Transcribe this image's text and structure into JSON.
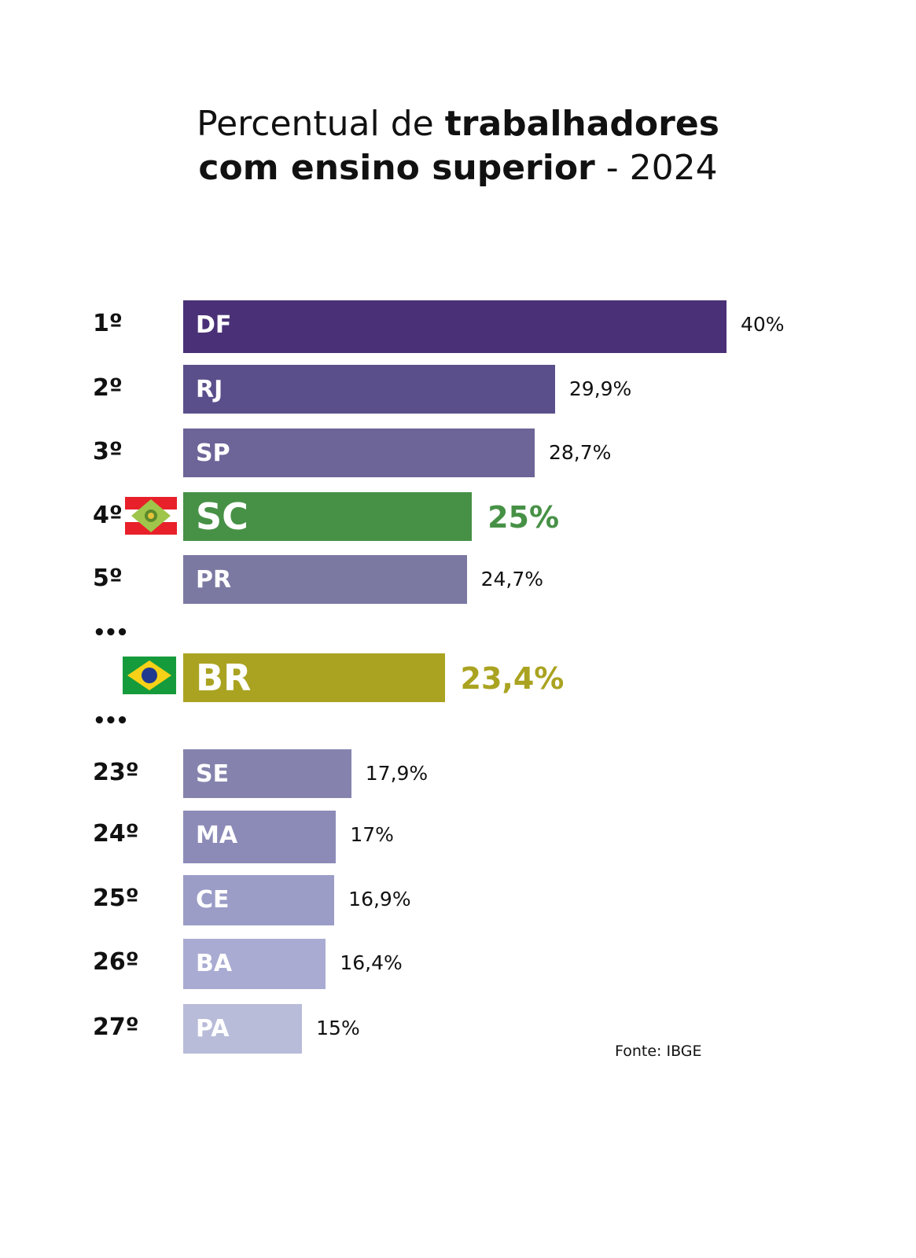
{
  "title": {
    "part1": "Percentual de ",
    "bold1": "trabalhadores",
    "bold2": "com ensino superior",
    "part2": " - 2024"
  },
  "source": "Fonte: IBGE",
  "ellipsis": "•••",
  "chart_data": {
    "type": "bar",
    "orientation": "horizontal",
    "title": "Percentual de trabalhadores com ensino superior - 2024",
    "unit": "%",
    "xlim": [
      8,
      40
    ],
    "rows": [
      {
        "rank": "1º",
        "category": "DF",
        "value": 40,
        "label": "40%",
        "color": "#4a3177"
      },
      {
        "rank": "2º",
        "category": "RJ",
        "value": 29.9,
        "label": "29,9%",
        "color": "#5b4f8b"
      },
      {
        "rank": "3º",
        "category": "SP",
        "value": 28.7,
        "label": "28,7%",
        "color": "#6d6498"
      },
      {
        "rank": "4º",
        "category": "SC",
        "value": 25,
        "label": "25%",
        "color": "#479146",
        "highlight": true
      },
      {
        "rank": "5º",
        "category": "PR",
        "value": 24.7,
        "label": "24,7%",
        "color": "#7b79a2"
      },
      {
        "rank": "",
        "category": "BR",
        "value": 23.4,
        "label": "23,4%",
        "color": "#aaa321",
        "highlight": true
      },
      {
        "rank": "23º",
        "category": "SE",
        "value": 17.9,
        "label": "17,9%",
        "color": "#8583ad"
      },
      {
        "rank": "24º",
        "category": "MA",
        "value": 17,
        "label": "17%",
        "color": "#8c8bb8"
      },
      {
        "rank": "25º",
        "category": "CE",
        "value": 16.9,
        "label": "16,9%",
        "color": "#9b9dc6"
      },
      {
        "rank": "26º",
        "category": "BA",
        "value": 16.4,
        "label": "16,4%",
        "color": "#a9abd2"
      },
      {
        "rank": "27º",
        "category": "PA",
        "value": 15,
        "label": "15%",
        "color": "#b8bcd9"
      }
    ]
  }
}
